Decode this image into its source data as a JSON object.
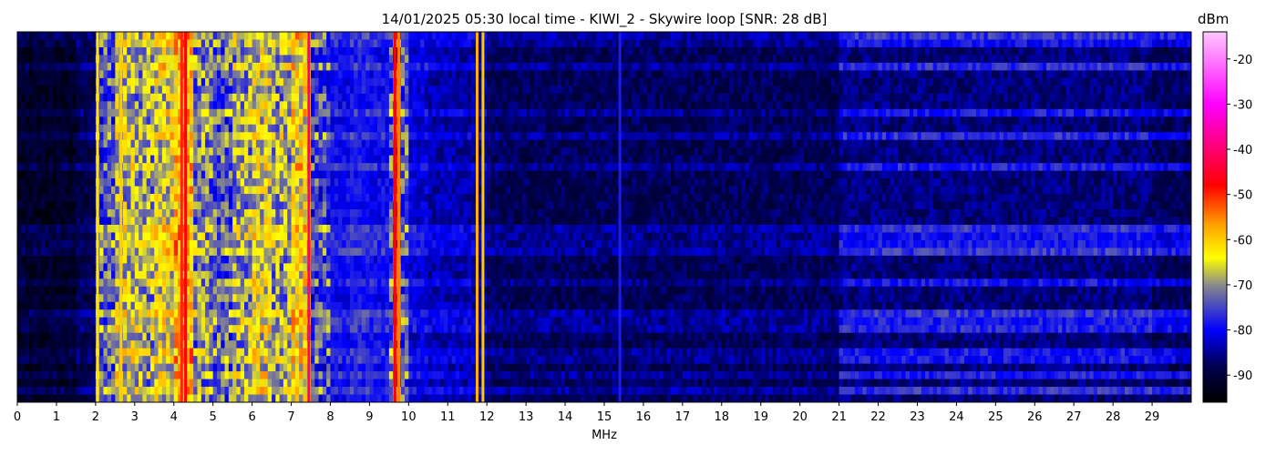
{
  "chart_data": {
    "type": "heatmap",
    "title": "14/01/2025 05:30 local time - KIWI_2 - Skywire loop [SNR: 28 dB]",
    "xlabel": "MHz",
    "ylabel": "",
    "xlim": [
      0,
      30
    ],
    "x_ticks": [
      "0",
      "1",
      "2",
      "3",
      "4",
      "5",
      "6",
      "7",
      "8",
      "9",
      "10",
      "11",
      "12",
      "13",
      "14",
      "15",
      "16",
      "17",
      "18",
      "19",
      "20",
      "21",
      "22",
      "23",
      "24",
      "25",
      "26",
      "27",
      "28",
      "29"
    ],
    "colorbar": {
      "label": "dBm",
      "range": [
        -96,
        -14
      ],
      "ticks": [
        "-20",
        "-30",
        "-40",
        "-50",
        "-60",
        "-70",
        "-80",
        "-90"
      ],
      "colormap": [
        {
          "v": -96,
          "c": "#000000"
        },
        {
          "v": -88,
          "c": "#000050"
        },
        {
          "v": -80,
          "c": "#0000ff"
        },
        {
          "v": -70,
          "c": "#8a8a8a"
        },
        {
          "v": -64,
          "c": "#ffff00"
        },
        {
          "v": -57,
          "c": "#ffa500"
        },
        {
          "v": -48,
          "c": "#ff0000"
        },
        {
          "v": -30,
          "c": "#ff00ff"
        },
        {
          "v": -14,
          "c": "#ffc8ff"
        }
      ]
    },
    "band_bin_mhz": 0.5,
    "band_levels_dbm": [
      -92,
      -92,
      -92,
      -89,
      -75,
      -68,
      -70,
      -66,
      -60,
      -72,
      -74,
      -70,
      -66,
      -70,
      -64,
      -76,
      -80,
      -79,
      -80,
      -74,
      -82,
      -84,
      -84,
      -84,
      -88,
      -88,
      -88,
      -88,
      -88,
      -88,
      -88,
      -88,
      -88,
      -88,
      -88,
      -88,
      -88,
      -88,
      -88,
      -88,
      -88,
      -88,
      -86,
      -86,
      -86,
      -86,
      -86,
      -86,
      -86,
      -86,
      -86,
      -86,
      -86,
      -86,
      -86,
      -86,
      -86,
      -86,
      -88,
      -88
    ],
    "strong_signals": [
      {
        "mhz": 2.05,
        "dbm": -62
      },
      {
        "mhz": 2.65,
        "dbm": -60
      },
      {
        "mhz": 4.2,
        "dbm": -50
      },
      {
        "mhz": 4.3,
        "dbm": -48
      },
      {
        "mhz": 7.45,
        "dbm": -40
      },
      {
        "mhz": 9.65,
        "dbm": -48
      },
      {
        "mhz": 9.75,
        "dbm": -55
      },
      {
        "mhz": 11.75,
        "dbm": -58
      },
      {
        "mhz": 11.9,
        "dbm": -60
      },
      {
        "mhz": 15.4,
        "dbm": -78
      }
    ]
  }
}
